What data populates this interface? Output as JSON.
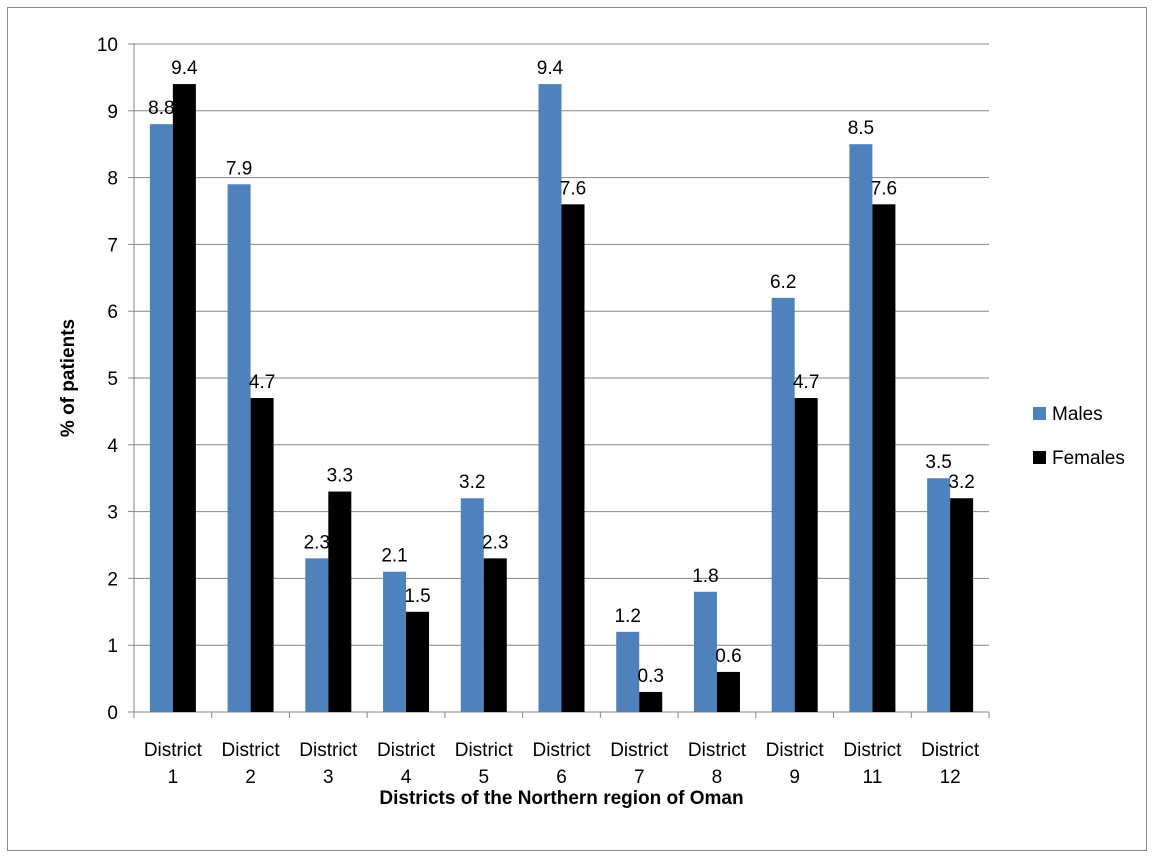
{
  "chart_data": {
    "type": "bar",
    "title": "",
    "xlabel": "Districts of the Northern region of Oman",
    "ylabel": "% of patients",
    "ylim": [
      0,
      10
    ],
    "yticks": [
      "0",
      "1",
      "2",
      "3",
      "4",
      "5",
      "6",
      "7",
      "8",
      "9",
      "10"
    ],
    "categories": [
      [
        "District",
        "1"
      ],
      [
        "District",
        "2"
      ],
      [
        "District",
        "3"
      ],
      [
        "District",
        "4"
      ],
      [
        "District",
        "5"
      ],
      [
        "District",
        "6"
      ],
      [
        "District",
        "7"
      ],
      [
        "District",
        "8"
      ],
      [
        "District",
        "9"
      ],
      [
        "District",
        "11"
      ],
      [
        "District",
        "12"
      ]
    ],
    "series": [
      {
        "name": "Males",
        "color": "#4f81bd",
        "values": [
          8.8,
          7.9,
          2.3,
          2.1,
          3.2,
          9.4,
          1.2,
          1.8,
          6.2,
          8.5,
          3.5
        ],
        "labels": [
          "8.8",
          "7.9",
          "2.3",
          "2.1",
          "3.2",
          "9.4",
          "1.2",
          "1.8",
          "6.2",
          "8.5",
          "3.5"
        ]
      },
      {
        "name": "Females",
        "color": "#000000",
        "values": [
          9.4,
          4.7,
          3.3,
          1.5,
          2.3,
          7.6,
          0.3,
          0.6,
          4.7,
          7.6,
          3.2
        ],
        "labels": [
          "9.4",
          "4.7",
          "3.3",
          "1.5",
          "2.3",
          "7.6",
          "0.3",
          "0.6",
          "4.7",
          "7.6",
          "3.2"
        ]
      }
    ],
    "grid": true,
    "legend_position": "right"
  }
}
